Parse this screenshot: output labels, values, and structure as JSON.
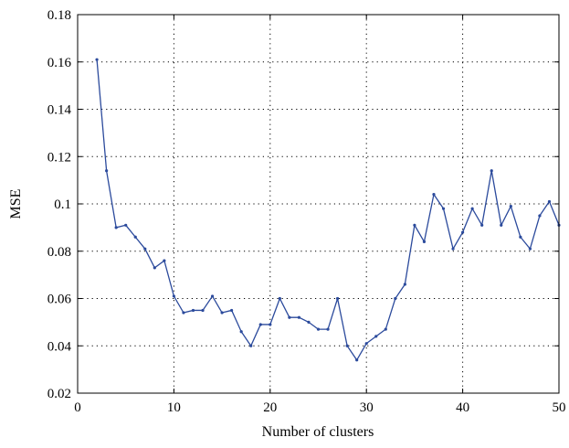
{
  "chart_data": {
    "type": "line",
    "xlabel": "Number of clusters",
    "ylabel": "MSE",
    "xlim": [
      0,
      50
    ],
    "ylim": [
      0.02,
      0.18
    ],
    "xticks": [
      0,
      10,
      20,
      30,
      40,
      50
    ],
    "yticks": [
      0.02,
      0.04,
      0.06,
      0.08,
      0.1,
      0.12,
      0.14,
      0.16,
      0.18
    ],
    "xtick_labels": [
      "0",
      "10",
      "20",
      "30",
      "40",
      "50"
    ],
    "ytick_labels": [
      "0.02",
      "0.04",
      "0.06",
      "0.08",
      "0.1",
      "0.12",
      "0.14",
      "0.16",
      "0.18"
    ],
    "grid": true,
    "line_color": "#2b4a9c",
    "series": [
      {
        "x": [
          2,
          3,
          4,
          5,
          6,
          7,
          8,
          9,
          10,
          11,
          12,
          13,
          14,
          15,
          16,
          17,
          18,
          19,
          20,
          21,
          22,
          23,
          24,
          25,
          26,
          27,
          28,
          29,
          30,
          31,
          32,
          33,
          34,
          35,
          36,
          37,
          38,
          39,
          40,
          41,
          42,
          43,
          44,
          45,
          46,
          47,
          48,
          49,
          50
        ],
        "values": [
          0.161,
          0.114,
          0.09,
          0.091,
          0.086,
          0.081,
          0.073,
          0.076,
          0.061,
          0.054,
          0.055,
          0.055,
          0.061,
          0.054,
          0.055,
          0.046,
          0.04,
          0.049,
          0.049,
          0.06,
          0.052,
          0.052,
          0.05,
          0.047,
          0.047,
          0.06,
          0.04,
          0.034,
          0.041,
          0.044,
          0.047,
          0.06,
          0.066,
          0.091,
          0.084,
          0.104,
          0.098,
          0.081,
          0.088,
          0.098,
          0.091,
          0.114,
          0.091,
          0.099,
          0.086,
          0.081,
          0.095,
          0.101,
          0.091
        ]
      }
    ]
  }
}
